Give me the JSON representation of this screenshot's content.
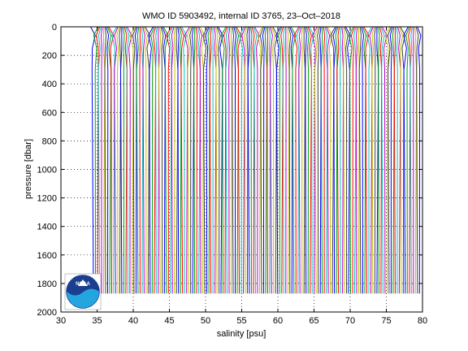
{
  "chart_data": {
    "type": "line",
    "title": "WMO ID 5903492, internal ID 3765, 23–Oct–2018",
    "xlabel": "salinity [psu]",
    "ylabel": "pressure [dbar]",
    "xlim": [
      30,
      80
    ],
    "ylim": [
      0,
      2000
    ],
    "y_reversed": true,
    "x_ticks": [
      30,
      35,
      40,
      45,
      50,
      55,
      60,
      65,
      70,
      75,
      80
    ],
    "y_ticks": [
      0,
      200,
      400,
      600,
      800,
      1000,
      1200,
      1400,
      1600,
      1800,
      2000
    ],
    "grid": true,
    "profile_pressure_range": [
      0,
      1870
    ],
    "series_colors": [
      "#0000ff",
      "#00a000",
      "#ff0000",
      "#00c0c0",
      "#c000c0",
      "#c0c000",
      "#404040"
    ],
    "profile_salinity_start": 34.5,
    "profile_salinity_end": 79.8,
    "profile_salinity_step": 0.28
  },
  "logo": {
    "text": "NOAA",
    "icon": "noaa-logo-icon"
  }
}
